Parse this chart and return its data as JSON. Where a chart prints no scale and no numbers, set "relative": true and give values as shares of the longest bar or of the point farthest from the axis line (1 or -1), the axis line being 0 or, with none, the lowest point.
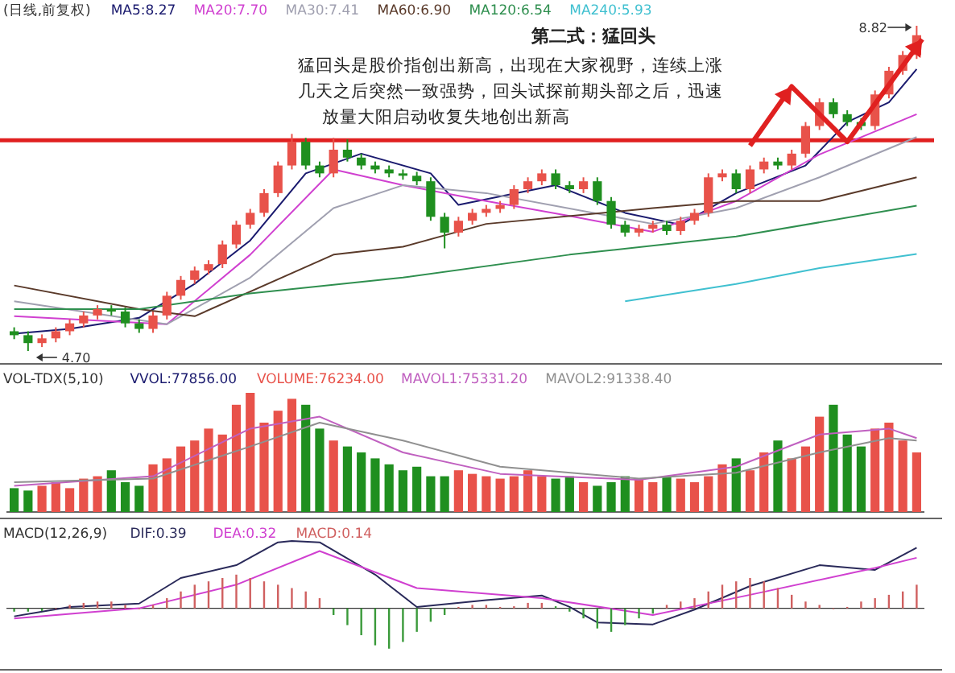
{
  "chart_data": [
    {
      "type": "candlestick",
      "title": "第二式：猛回头",
      "subtitle": "(日线,前复权)",
      "annotations": [
        "猛回头是股价指创出新高，出现在大家视野，连续上涨几天之后突然一致强势，回头试探前期头部之后，迅速放量大阳启动收复失地创出新高",
        "8.82",
        "4.70"
      ],
      "categories": [
        null,
        null,
        null,
        null,
        null,
        null,
        null,
        null,
        null,
        null,
        null,
        null,
        null,
        null,
        null,
        null,
        null,
        null,
        null,
        null,
        null,
        null,
        null,
        null,
        null,
        null,
        null,
        null,
        null,
        null,
        null,
        null,
        null,
        null,
        null,
        null,
        null,
        null,
        null,
        null,
        null,
        null,
        null,
        null,
        null,
        null,
        null,
        null,
        null,
        null,
        null,
        null,
        null,
        null,
        null,
        null,
        null,
        null,
        null,
        null,
        null,
        null,
        null,
        null,
        null,
        null
      ],
      "ohlc": [
        [
          4.95,
          5.0,
          4.85,
          4.9
        ],
        [
          4.9,
          4.95,
          4.7,
          4.8
        ],
        [
          4.8,
          4.91,
          4.75,
          4.86
        ],
        [
          4.86,
          5.0,
          4.81,
          4.95
        ],
        [
          4.95,
          5.1,
          4.9,
          5.05
        ],
        [
          5.05,
          5.2,
          5.0,
          5.15
        ],
        [
          5.15,
          5.28,
          5.1,
          5.23
        ],
        [
          5.23,
          5.28,
          5.15,
          5.2
        ],
        [
          5.2,
          5.25,
          5.0,
          5.05
        ],
        [
          5.05,
          5.1,
          4.93,
          4.98
        ],
        [
          4.98,
          5.2,
          4.93,
          5.15
        ],
        [
          5.15,
          5.45,
          5.1,
          5.4
        ],
        [
          5.4,
          5.65,
          5.35,
          5.6
        ],
        [
          5.6,
          5.77,
          5.55,
          5.72
        ],
        [
          5.72,
          5.85,
          5.67,
          5.8
        ],
        [
          5.8,
          6.1,
          5.75,
          6.05
        ],
        [
          6.05,
          6.35,
          6.0,
          6.3
        ],
        [
          6.3,
          6.5,
          6.25,
          6.45
        ],
        [
          6.45,
          6.75,
          6.4,
          6.7
        ],
        [
          6.7,
          7.1,
          6.65,
          7.05
        ],
        [
          7.05,
          7.45,
          7.0,
          7.35
        ],
        [
          7.35,
          7.4,
          7.0,
          7.05
        ],
        [
          7.05,
          7.1,
          6.9,
          6.95
        ],
        [
          6.95,
          7.4,
          6.9,
          7.25
        ],
        [
          7.25,
          7.38,
          7.1,
          7.15
        ],
        [
          7.15,
          7.2,
          7.0,
          7.05
        ],
        [
          7.05,
          7.1,
          6.95,
          7.0
        ],
        [
          7.0,
          7.05,
          6.9,
          6.95
        ],
        [
          6.95,
          7.0,
          6.87,
          6.92
        ],
        [
          6.92,
          6.97,
          6.8,
          6.85
        ],
        [
          6.85,
          6.9,
          6.35,
          6.4
        ],
        [
          6.4,
          6.45,
          6.0,
          6.2
        ],
        [
          6.2,
          6.4,
          6.15,
          6.35
        ],
        [
          6.35,
          6.5,
          6.3,
          6.45
        ],
        [
          6.45,
          6.55,
          6.4,
          6.5
        ],
        [
          6.5,
          6.6,
          6.45,
          6.55
        ],
        [
          6.55,
          6.8,
          6.5,
          6.75
        ],
        [
          6.75,
          6.9,
          6.7,
          6.85
        ],
        [
          6.85,
          7.0,
          6.8,
          6.95
        ],
        [
          6.95,
          7.0,
          6.75,
          6.8
        ],
        [
          6.8,
          6.85,
          6.7,
          6.75
        ],
        [
          6.75,
          6.9,
          6.7,
          6.85
        ],
        [
          6.85,
          6.9,
          6.55,
          6.6
        ],
        [
          6.6,
          6.65,
          6.25,
          6.3
        ],
        [
          6.3,
          6.35,
          6.15,
          6.2
        ],
        [
          6.2,
          6.3,
          6.15,
          6.25
        ],
        [
          6.25,
          6.35,
          6.2,
          6.3
        ],
        [
          6.3,
          6.35,
          6.17,
          6.22
        ],
        [
          6.22,
          6.4,
          6.17,
          6.35
        ],
        [
          6.35,
          6.5,
          6.3,
          6.45
        ],
        [
          6.45,
          6.95,
          6.4,
          6.9
        ],
        [
          6.9,
          7.0,
          6.85,
          6.95
        ],
        [
          6.95,
          7.0,
          6.7,
          6.75
        ],
        [
          6.75,
          7.05,
          6.7,
          7.0
        ],
        [
          7.0,
          7.15,
          6.95,
          7.1
        ],
        [
          7.1,
          7.15,
          7.0,
          7.05
        ],
        [
          7.05,
          7.25,
          7.0,
          7.2
        ],
        [
          7.2,
          7.6,
          7.15,
          7.55
        ],
        [
          7.55,
          7.9,
          7.5,
          7.85
        ],
        [
          7.85,
          7.9,
          7.65,
          7.7
        ],
        [
          7.7,
          7.75,
          7.55,
          7.6
        ],
        [
          7.6,
          7.65,
          7.5,
          7.55
        ],
        [
          7.55,
          8.0,
          7.5,
          7.95
        ],
        [
          7.95,
          8.3,
          7.9,
          8.25
        ],
        [
          8.25,
          8.5,
          8.2,
          8.45
        ],
        [
          8.45,
          8.82,
          8.4,
          8.7
        ]
      ],
      "colors": [
        "#1f8f1f",
        "#1f8f1f",
        "#e8524a",
        "#e8524a",
        "#e8524a",
        "#e8524a",
        "#e8524a",
        "#1f8f1f",
        "#1f8f1f",
        "#1f8f1f",
        "#e8524a",
        "#e8524a",
        "#e8524a",
        "#e8524a",
        "#e8524a",
        "#e8524a",
        "#e8524a",
        "#e8524a",
        "#e8524a",
        "#e8524a",
        "#e8524a",
        "#1f8f1f",
        "#1f8f1f",
        "#e8524a",
        "#1f8f1f",
        "#1f8f1f",
        "#1f8f1f",
        "#1f8f1f",
        "#1f8f1f",
        "#1f8f1f",
        "#1f8f1f",
        "#1f8f1f",
        "#e8524a",
        "#e8524a",
        "#e8524a",
        "#e8524a",
        "#e8524a",
        "#e8524a",
        "#e8524a",
        "#1f8f1f",
        "#1f8f1f",
        "#e8524a",
        "#1f8f1f",
        "#1f8f1f",
        "#1f8f1f",
        "#e8524a",
        "#e8524a",
        "#1f8f1f",
        "#e8524a",
        "#e8524a",
        "#e8524a",
        "#e8524a",
        "#1f8f1f",
        "#e8524a",
        "#e8524a",
        "#1f8f1f",
        "#e8524a",
        "#e8524a",
        "#e8524a",
        "#1f8f1f",
        "#1f8f1f",
        "#1f8f1f",
        "#e8524a",
        "#e8524a",
        "#e8524a",
        "#e8524a"
      ],
      "series": [
        {
          "type": "line",
          "name": "MA5:8.27",
          "color": "#1a1a6e",
          "values": [
            4.92,
            null,
            null,
            null,
            4.98,
            null,
            null,
            null,
            null,
            5.12,
            null,
            null,
            null,
            5.55,
            null,
            null,
            null,
            6.1,
            null,
            null,
            null,
            6.95,
            null,
            null,
            null,
            7.2,
            null,
            null,
            null,
            null,
            6.95,
            null,
            6.55,
            null,
            null,
            null,
            null,
            null,
            null,
            6.8,
            null,
            null,
            null,
            null,
            6.45,
            null,
            null,
            null,
            6.3,
            null,
            null,
            null,
            6.7,
            null,
            null,
            null,
            null,
            7.05,
            null,
            null,
            7.6,
            null,
            null,
            7.85,
            null,
            8.27
          ]
        },
        {
          "type": "line",
          "name": "MA20:7.70",
          "color": "#d040d0",
          "values": [
            5.14,
            null,
            null,
            null,
            null,
            null,
            null,
            null,
            null,
            null,
            null,
            5.04,
            null,
            null,
            null,
            null,
            null,
            5.92,
            null,
            null,
            null,
            null,
            null,
            7.0,
            null,
            null,
            null,
            null,
            6.8,
            null,
            null,
            null,
            null,
            null,
            6.6,
            null,
            null,
            null,
            null,
            null,
            6.41,
            null,
            null,
            null,
            null,
            null,
            6.21,
            null,
            null,
            null,
            null,
            null,
            6.6,
            null,
            null,
            null,
            null,
            null,
            7.19,
            null,
            null,
            null,
            null,
            null,
            null,
            7.7
          ]
        },
        {
          "type": "line",
          "name": "MA30:7.41",
          "color": "#a0a0b0",
          "values": [
            5.33,
            null,
            null,
            null,
            null,
            null,
            null,
            null,
            null,
            null,
            null,
            5.04,
            null,
            null,
            null,
            null,
            null,
            5.63,
            null,
            null,
            null,
            null,
            null,
            6.51,
            null,
            null,
            null,
            null,
            6.8,
            null,
            null,
            null,
            null,
            null,
            6.7,
            null,
            null,
            null,
            null,
            null,
            null,
            null,
            null,
            null,
            null,
            null,
            6.31,
            null,
            null,
            null,
            null,
            null,
            6.51,
            null,
            null,
            null,
            null,
            null,
            6.9,
            null,
            null,
            null,
            null,
            null,
            null,
            7.41
          ]
        },
        {
          "type": "line",
          "name": "MA60:6.90",
          "color": "#5a3a2a",
          "values": [
            5.53,
            null,
            null,
            null,
            null,
            null,
            null,
            null,
            null,
            5.23,
            null,
            null,
            null,
            5.14,
            null,
            null,
            null,
            null,
            null,
            null,
            null,
            null,
            null,
            5.92,
            null,
            null,
            null,
            null,
            6.02,
            null,
            null,
            null,
            null,
            null,
            6.31,
            null,
            null,
            null,
            null,
            null,
            null,
            null,
            null,
            null,
            null,
            null,
            6.51,
            null,
            null,
            null,
            null,
            null,
            6.6,
            null,
            null,
            null,
            null,
            null,
            6.6,
            null,
            null,
            null,
            null,
            null,
            null,
            6.9
          ]
        },
        {
          "type": "line",
          "name": "MA120:6.54",
          "color": "#2f8f4f",
          "values": [
            5.23,
            null,
            null,
            null,
            null,
            null,
            null,
            null,
            null,
            5.23,
            null,
            null,
            null,
            null,
            null,
            null,
            null,
            5.43,
            null,
            null,
            null,
            null,
            null,
            null,
            null,
            null,
            null,
            null,
            5.63,
            null,
            null,
            null,
            null,
            null,
            null,
            null,
            null,
            null,
            null,
            null,
            5.92,
            null,
            null,
            null,
            null,
            null,
            null,
            null,
            null,
            null,
            null,
            null,
            6.15,
            null,
            null,
            null,
            null,
            null,
            null,
            null,
            null,
            null,
            null,
            null,
            null,
            6.54
          ]
        },
        {
          "type": "line",
          "name": "MA240:5.93",
          "color": "#40c0d0",
          "values": [
            null,
            null,
            null,
            null,
            null,
            null,
            null,
            null,
            null,
            null,
            null,
            null,
            null,
            null,
            null,
            null,
            null,
            null,
            null,
            null,
            null,
            null,
            null,
            null,
            null,
            null,
            null,
            null,
            null,
            null,
            null,
            null,
            null,
            null,
            null,
            null,
            null,
            null,
            null,
            null,
            null,
            null,
            null,
            null,
            5.33,
            null,
            null,
            null,
            null,
            null,
            null,
            null,
            5.55,
            null,
            null,
            null,
            null,
            null,
            5.75,
            null,
            null,
            null,
            null,
            null,
            null,
            5.93
          ]
        }
      ],
      "ref_lines": [
        {
          "axis": "y",
          "value": 7.37,
          "color": "#e02020"
        }
      ]
    },
    {
      "type": "line",
      "relative": true,
      "title": "VOL-TDX(5,10)",
      "annotations": [
        "VVOL:77856.00"
      ],
      "categories": [
        null,
        null,
        null,
        null,
        null,
        null,
        null,
        null,
        null,
        null,
        null,
        null,
        null,
        null,
        null,
        null,
        null,
        null,
        null,
        null,
        null,
        null,
        null,
        null,
        null,
        null,
        null,
        null,
        null,
        null,
        null,
        null,
        null,
        null,
        null,
        null,
        null,
        null,
        null,
        null,
        null,
        null,
        null,
        null,
        null,
        null,
        null,
        null,
        null,
        null,
        null,
        null,
        null,
        null,
        null,
        null,
        null,
        null,
        null,
        null,
        null,
        null,
        null,
        null,
        null,
        null
      ],
      "series": [
        {
          "type": "bar",
          "name": "VOLUME:76234.00",
          "color": "#e8524a",
          "colors": [
            "#1f8f1f",
            "#1f8f1f",
            "#e8524a",
            "#e8524a",
            "#e8524a",
            "#e8524a",
            "#e8524a",
            "#1f8f1f",
            "#1f8f1f",
            "#1f8f1f",
            "#e8524a",
            "#e8524a",
            "#e8524a",
            "#e8524a",
            "#e8524a",
            "#e8524a",
            "#e8524a",
            "#e8524a",
            "#e8524a",
            "#e8524a",
            "#e8524a",
            "#1f8f1f",
            "#1f8f1f",
            "#e8524a",
            "#1f8f1f",
            "#1f8f1f",
            "#1f8f1f",
            "#1f8f1f",
            "#1f8f1f",
            "#1f8f1f",
            "#1f8f1f",
            "#1f8f1f",
            "#e8524a",
            "#e8524a",
            "#e8524a",
            "#e8524a",
            "#e8524a",
            "#e8524a",
            "#e8524a",
            "#1f8f1f",
            "#1f8f1f",
            "#e8524a",
            "#1f8f1f",
            "#1f8f1f",
            "#1f8f1f",
            "#e8524a",
            "#e8524a",
            "#1f8f1f",
            "#e8524a",
            "#e8524a",
            "#e8524a",
            "#e8524a",
            "#1f8f1f",
            "#e8524a",
            "#e8524a",
            "#1f8f1f",
            "#e8524a",
            "#e8524a",
            "#e8524a",
            "#1f8f1f",
            "#1f8f1f",
            "#1f8f1f",
            "#e8524a",
            "#e8524a",
            "#e8524a",
            "#e8524a"
          ],
          "values": [
            0.2,
            0.18,
            0.22,
            0.25,
            0.2,
            0.28,
            0.3,
            0.35,
            0.25,
            0.22,
            0.4,
            0.45,
            0.55,
            0.6,
            0.7,
            0.65,
            0.9,
            1.0,
            0.75,
            0.85,
            0.95,
            0.9,
            0.7,
            0.6,
            0.55,
            0.5,
            0.45,
            0.4,
            0.35,
            0.38,
            0.3,
            0.3,
            0.35,
            0.32,
            0.3,
            0.28,
            0.3,
            0.35,
            0.3,
            0.28,
            0.3,
            0.25,
            0.22,
            0.25,
            0.3,
            0.28,
            0.25,
            0.3,
            0.28,
            0.25,
            0.3,
            0.4,
            0.45,
            0.35,
            0.5,
            0.6,
            0.45,
            0.55,
            0.8,
            0.9,
            0.65,
            0.55,
            0.7,
            0.75,
            0.6,
            0.5
          ]
        },
        {
          "type": "line",
          "name": "MAVOL1:75331.20",
          "color": "#c060c0",
          "values": [
            0.22,
            null,
            null,
            null,
            null,
            null,
            null,
            null,
            null,
            null,
            0.3,
            null,
            null,
            null,
            null,
            null,
            null,
            0.7,
            null,
            null,
            null,
            null,
            0.8,
            null,
            null,
            null,
            null,
            null,
            0.5,
            null,
            null,
            null,
            null,
            null,
            null,
            0.32,
            null,
            null,
            null,
            null,
            null,
            null,
            null,
            null,
            null,
            0.27,
            null,
            null,
            null,
            null,
            null,
            null,
            0.38,
            null,
            null,
            null,
            null,
            null,
            0.65,
            null,
            null,
            null,
            null,
            0.7,
            null,
            0.62
          ]
        },
        {
          "type": "line",
          "name": "MAVOL2:91338.40",
          "color": "#909090",
          "values": [
            0.25,
            null,
            null,
            null,
            null,
            null,
            null,
            null,
            null,
            null,
            0.28,
            null,
            null,
            null,
            null,
            null,
            null,
            0.55,
            null,
            null,
            null,
            null,
            0.75,
            null,
            null,
            null,
            null,
            null,
            0.6,
            null,
            null,
            null,
            null,
            null,
            null,
            0.38,
            null,
            null,
            null,
            null,
            null,
            null,
            null,
            null,
            null,
            0.28,
            null,
            null,
            null,
            null,
            null,
            null,
            0.33,
            null,
            null,
            null,
            null,
            null,
            0.5,
            null,
            null,
            null,
            null,
            0.62,
            null,
            0.6
          ]
        }
      ]
    },
    {
      "type": "line",
      "relative": true,
      "title": "MACD(12,26,9)",
      "categories": [
        null,
        null,
        null,
        null,
        null,
        null,
        null,
        null,
        null,
        null,
        null,
        null,
        null,
        null,
        null,
        null,
        null,
        null,
        null,
        null,
        null,
        null,
        null,
        null,
        null,
        null,
        null,
        null,
        null,
        null,
        null,
        null,
        null,
        null,
        null,
        null,
        null,
        null,
        null,
        null,
        null,
        null,
        null,
        null,
        null,
        null,
        null,
        null,
        null,
        null,
        null,
        null,
        null,
        null,
        null,
        null,
        null,
        null,
        null,
        null,
        null,
        null,
        null,
        null,
        null,
        null
      ],
      "series": [
        {
          "type": "line",
          "name": "DIF:0.39",
          "color": "#2a2a5a",
          "values": [
            -0.12,
            null,
            null,
            null,
            0.02,
            null,
            null,
            null,
            null,
            0.07,
            null,
            null,
            0.45,
            null,
            null,
            null,
            0.64,
            null,
            null,
            0.98,
            1.0,
            null,
            0.98,
            null,
            null,
            null,
            0.5,
            null,
            null,
            0.02,
            null,
            null,
            null,
            null,
            0.12,
            null,
            null,
            null,
            0.19,
            null,
            0.02,
            null,
            -0.21,
            null,
            null,
            null,
            -0.24,
            null,
            null,
            -0.02,
            null,
            null,
            null,
            0.33,
            null,
            null,
            null,
            null,
            0.64,
            null,
            null,
            null,
            0.57,
            null,
            null,
            0.9
          ]
        },
        {
          "type": "line",
          "name": "DEA:0.32",
          "color": "#d040d0",
          "values": [
            -0.15,
            null,
            null,
            null,
            null,
            null,
            null,
            null,
            null,
            0,
            null,
            null,
            null,
            null,
            null,
            null,
            0.35,
            null,
            null,
            null,
            null,
            null,
            0.85,
            null,
            null,
            null,
            null,
            null,
            null,
            0.3,
            null,
            null,
            null,
            null,
            null,
            null,
            null,
            null,
            0.15,
            null,
            null,
            null,
            null,
            null,
            null,
            null,
            -0.1,
            null,
            null,
            null,
            null,
            null,
            null,
            0.2,
            null,
            null,
            null,
            null,
            null,
            null,
            null,
            null,
            0.6,
            null,
            null,
            0.75
          ]
        },
        {
          "type": "bar",
          "name": "MACD:0.14",
          "color": "#d06060",
          "colors": [
            "#3a9a3a",
            "#3a9a3a",
            "#3a9a3a",
            "#d06060",
            "#d06060",
            "#d06060",
            "#d06060",
            "#d06060",
            "#d06060",
            "#d06060",
            "#d06060",
            "#d06060",
            "#d06060",
            "#d06060",
            "#d06060",
            "#d06060",
            "#d06060",
            "#d06060",
            "#d06060",
            "#d06060",
            "#d06060",
            "#d06060",
            "#d06060",
            "#3a9a3a",
            "#3a9a3a",
            "#3a9a3a",
            "#3a9a3a",
            "#3a9a3a",
            "#3a9a3a",
            "#3a9a3a",
            "#3a9a3a",
            "#3a9a3a",
            "#d06060",
            "#d06060",
            "#d06060",
            "#d06060",
            "#d06060",
            "#d06060",
            "#d06060",
            "#3a9a3a",
            "#3a9a3a",
            "#3a9a3a",
            "#3a9a3a",
            "#3a9a3a",
            "#3a9a3a",
            "#3a9a3a",
            "#3a9a3a",
            "#d06060",
            "#d06060",
            "#d06060",
            "#d06060",
            "#d06060",
            "#d06060",
            "#d06060",
            "#d06060",
            "#d06060",
            "#d06060",
            "#d06060",
            "#d06060",
            "#d06060",
            "#d06060",
            "#d06060",
            "#d06060",
            "#d06060",
            "#d06060",
            "#d06060"
          ],
          "values": [
            -0.05,
            -0.05,
            -0.04,
            0,
            0.05,
            0.08,
            0.1,
            0.1,
            0.05,
            0,
            0.05,
            0.15,
            0.25,
            0.35,
            0.4,
            0.45,
            0.5,
            0.45,
            0.4,
            0.35,
            0.3,
            0.25,
            0.15,
            -0.1,
            -0.25,
            -0.4,
            -0.55,
            -0.6,
            -0.5,
            -0.35,
            -0.2,
            -0.1,
            0.02,
            0.05,
            0.05,
            0.02,
            0.03,
            0.08,
            0.08,
            0.03,
            -0.05,
            -0.15,
            -0.3,
            -0.35,
            -0.25,
            -0.15,
            -0.08,
            0.05,
            0.1,
            0.15,
            0.25,
            0.35,
            0.4,
            0.45,
            0.4,
            0.3,
            0.2,
            0.1,
            0.05,
            0,
            0.02,
            0.1,
            0.15,
            0.2,
            0.25,
            0.35
          ]
        }
      ]
    }
  ]
}
